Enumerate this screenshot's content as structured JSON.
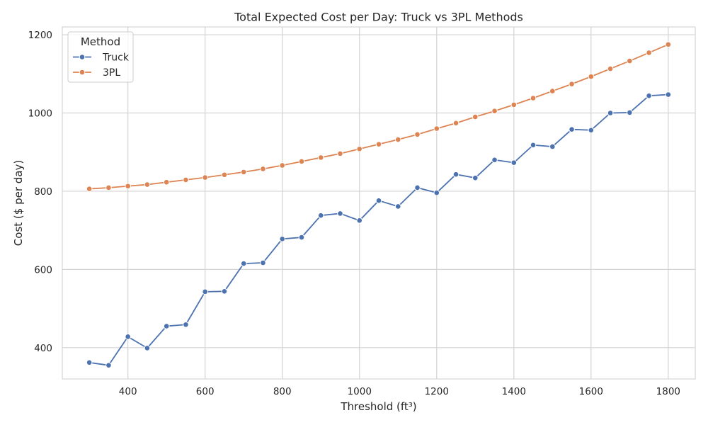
{
  "chart_data": {
    "type": "line",
    "title": "Total Expected Cost per Day: Truck vs 3PL Methods",
    "xlabel": "Threshold (ft³)",
    "ylabel": "Cost ($ per day)",
    "xlim": [
      230,
      1870
    ],
    "ylim": [
      320,
      1220
    ],
    "x_ticks": [
      400,
      600,
      800,
      1000,
      1200,
      1400,
      1600,
      1800
    ],
    "y_ticks": [
      400,
      600,
      800,
      1000,
      1200
    ],
    "grid": true,
    "legend": {
      "title": "Method",
      "placement": "top-left"
    },
    "x": [
      300,
      350,
      400,
      450,
      500,
      550,
      600,
      650,
      700,
      750,
      800,
      850,
      900,
      950,
      1000,
      1050,
      1100,
      1150,
      1200,
      1250,
      1300,
      1350,
      1400,
      1450,
      1500,
      1550,
      1600,
      1650,
      1700,
      1750,
      1800
    ],
    "series": [
      {
        "name": "Truck",
        "color": "#4c72b0",
        "values": [
          362,
          355,
          428,
          399,
          455,
          459,
          543,
          544,
          615,
          617,
          678,
          682,
          738,
          743,
          725,
          776,
          761,
          809,
          796,
          843,
          834,
          880,
          873,
          918,
          914,
          958,
          956,
          1000,
          1001,
          1044,
          1047
        ]
      },
      {
        "name": "3PL",
        "color": "#dd8452",
        "values": [
          806,
          809,
          813,
          817,
          823,
          829,
          835,
          842,
          849,
          857,
          866,
          876,
          886,
          896,
          908,
          920,
          932,
          945,
          960,
          974,
          990,
          1005,
          1021,
          1038,
          1056,
          1074,
          1093,
          1113,
          1133,
          1154,
          1175
        ]
      }
    ]
  }
}
